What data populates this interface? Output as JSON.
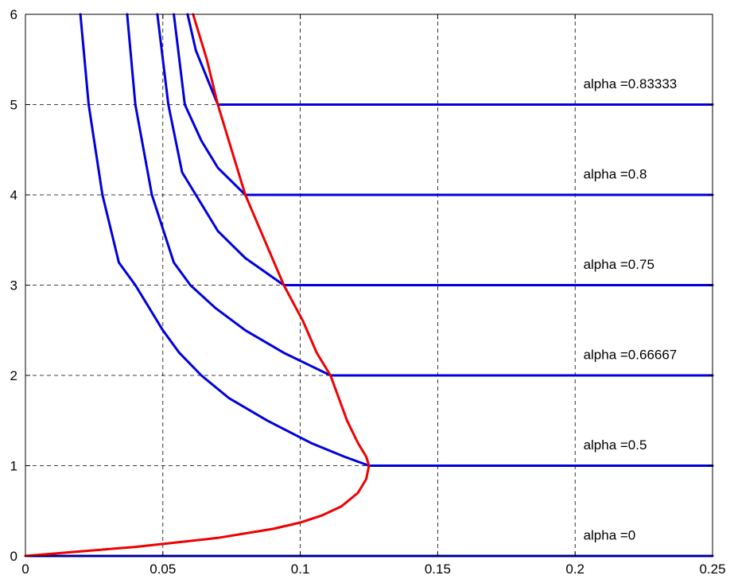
{
  "chart_data": {
    "type": "line",
    "title": "",
    "xlabel": "",
    "ylabel": "",
    "xlim": [
      0,
      0.25
    ],
    "ylim": [
      0,
      6
    ],
    "grid": true,
    "x_ticks": [
      "0",
      "0.05",
      "0.1",
      "0.15",
      "0.2",
      "0.25"
    ],
    "y_ticks": [
      "0",
      "1",
      "2",
      "3",
      "4",
      "5",
      "6"
    ],
    "colors": {
      "blue": "#0000dd",
      "red": "#ee0000",
      "grid": "#000000"
    },
    "series": [
      {
        "color": "#0000dd",
        "label": "alpha =0",
        "points": [
          [
            0,
            0
          ],
          [
            0.25,
            0
          ]
        ]
      },
      {
        "color": "#0000dd",
        "label": "alpha =0.5",
        "points": [
          [
            0.02,
            6.0
          ],
          [
            0.023,
            5.0
          ],
          [
            0.028,
            4.0
          ],
          [
            0.034,
            3.25
          ],
          [
            0.04,
            3.0
          ],
          [
            0.046,
            2.7
          ],
          [
            0.05,
            2.5
          ],
          [
            0.056,
            2.25
          ],
          [
            0.064,
            2.0
          ],
          [
            0.074,
            1.75
          ],
          [
            0.088,
            1.5
          ],
          [
            0.104,
            1.25
          ],
          [
            0.116,
            1.1
          ],
          [
            0.125,
            1.0
          ],
          [
            0.25,
            1.0
          ]
        ]
      },
      {
        "color": "#0000dd",
        "label": "alpha =0.66667",
        "points": [
          [
            0.037,
            6.0
          ],
          [
            0.04,
            5.0
          ],
          [
            0.046,
            4.0
          ],
          [
            0.054,
            3.25
          ],
          [
            0.06,
            3.0
          ],
          [
            0.069,
            2.75
          ],
          [
            0.08,
            2.5
          ],
          [
            0.094,
            2.25
          ],
          [
            0.111,
            2.0
          ],
          [
            0.25,
            2.0
          ]
        ]
      },
      {
        "color": "#0000dd",
        "label": "alpha =0.75",
        "points": [
          [
            0.048,
            6.0
          ],
          [
            0.052,
            5.0
          ],
          [
            0.057,
            4.25
          ],
          [
            0.062,
            4.0
          ],
          [
            0.07,
            3.6
          ],
          [
            0.08,
            3.3
          ],
          [
            0.094,
            3.0
          ],
          [
            0.25,
            3.0
          ]
        ]
      },
      {
        "color": "#0000dd",
        "label": "alpha =0.8",
        "points": [
          [
            0.054,
            6.0
          ],
          [
            0.058,
            5.0
          ],
          [
            0.064,
            4.6
          ],
          [
            0.07,
            4.3
          ],
          [
            0.08,
            4.0
          ],
          [
            0.25,
            4.0
          ]
        ]
      },
      {
        "color": "#0000dd",
        "label": "alpha =0.83333",
        "points": [
          [
            0.059,
            6.0
          ],
          [
            0.062,
            5.6
          ],
          [
            0.066,
            5.3
          ],
          [
            0.07,
            5.0
          ],
          [
            0.25,
            5.0
          ]
        ]
      },
      {
        "color": "#ee0000",
        "label": "",
        "points": [
          [
            0,
            0
          ],
          [
            0.02,
            0.05
          ],
          [
            0.04,
            0.1
          ],
          [
            0.055,
            0.15
          ],
          [
            0.07,
            0.2
          ],
          [
            0.08,
            0.25
          ],
          [
            0.09,
            0.3
          ],
          [
            0.1,
            0.37
          ],
          [
            0.108,
            0.45
          ],
          [
            0.115,
            0.55
          ],
          [
            0.121,
            0.7
          ],
          [
            0.124,
            0.85
          ],
          [
            0.125,
            1.0
          ],
          [
            0.124,
            1.1
          ],
          [
            0.121,
            1.25
          ],
          [
            0.117,
            1.5
          ],
          [
            0.111,
            2.0
          ],
          [
            0.106,
            2.25
          ],
          [
            0.101,
            2.6
          ],
          [
            0.094,
            3.0
          ],
          [
            0.087,
            3.5
          ],
          [
            0.08,
            4.0
          ],
          [
            0.075,
            4.5
          ],
          [
            0.07,
            5.0
          ],
          [
            0.066,
            5.5
          ],
          [
            0.061,
            6.0
          ]
        ]
      }
    ],
    "annotations": [
      {
        "text": "alpha =0",
        "x": 0.203,
        "y": 0.18
      },
      {
        "text": "alpha =0.5",
        "x": 0.203,
        "y": 1.18
      },
      {
        "text": "alpha =0.66667",
        "x": 0.203,
        "y": 2.18
      },
      {
        "text": "alpha =0.75",
        "x": 0.203,
        "y": 3.18
      },
      {
        "text": "alpha =0.8",
        "x": 0.203,
        "y": 4.18
      },
      {
        "text": "alpha =0.83333",
        "x": 0.203,
        "y": 5.18
      }
    ]
  }
}
